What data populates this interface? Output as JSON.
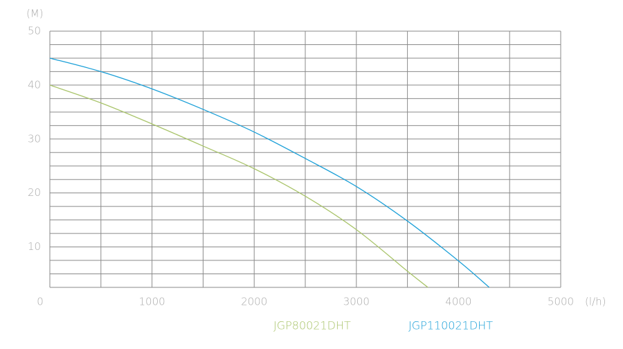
{
  "chart_data": {
    "type": "line",
    "y_label": "(M)",
    "x_label": "(l/h)",
    "x": [
      0,
      500,
      1000,
      1500,
      2000,
      2500,
      3000,
      3500,
      3700,
      4000,
      4300
    ],
    "series": [
      {
        "name": "JGP80021DHT",
        "color": "#a9c46a",
        "values": [
          40,
          36.7,
          32.8,
          28.7,
          24.5,
          19.4,
          13.2,
          5.5,
          2.5,
          null,
          null
        ]
      },
      {
        "name": "JGP110021DHT",
        "color": "#1ca0d8",
        "values": [
          45,
          42.5,
          39.3,
          35.5,
          31.3,
          26.4,
          21.2,
          14.8,
          null,
          7.4,
          2.5
        ]
      }
    ],
    "xlim": [
      0,
      5000
    ],
    "ylim": [
      2.5,
      50
    ],
    "xticks": [
      0,
      1000,
      2000,
      3000,
      4000,
      5000
    ],
    "yticks": [
      10,
      20,
      30,
      40,
      50
    ],
    "minor_xticks": [
      500,
      1500,
      2500,
      3500,
      4500
    ],
    "minor_yticks": [
      2.5,
      5,
      7.5,
      12.5,
      15,
      17.5,
      22.5,
      25,
      27.5,
      32.5,
      35,
      37.5,
      42.5,
      45,
      47.5
    ],
    "grid": true
  }
}
